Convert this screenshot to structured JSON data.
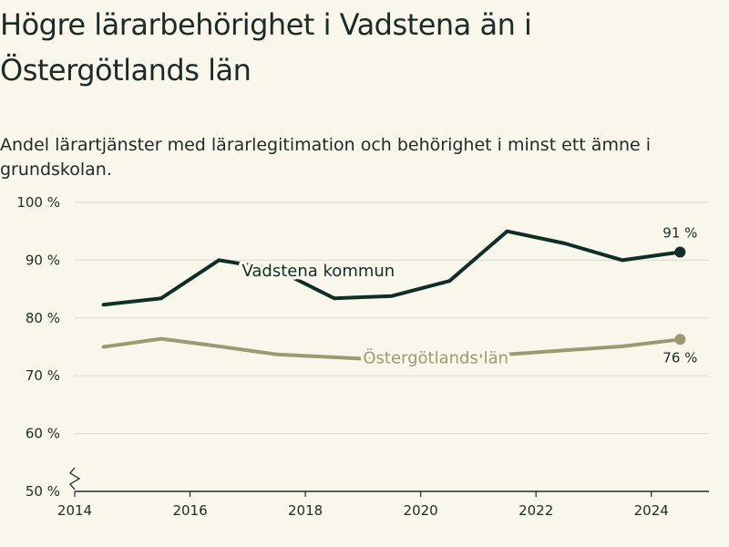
{
  "header": {
    "title": "Högre lärarbehörighet i Vadstena än i Östergötlands län",
    "subtitle": "Andel lärartjänster med lärarlegitimation och behörighet i minst ett ämne i grundskolan."
  },
  "colors": {
    "background": "#f9f6ec",
    "vadstena": "#0f2e26",
    "ostergotland": "#9c9a72",
    "grid": "#dcd9cf",
    "axis": "#1c2b26"
  },
  "chart_data": {
    "type": "line",
    "title": "Högre lärarbehörighet i Vadstena än i Östergötlands län",
    "subtitle": "Andel lärartjänster med lärarlegitimation och behörighet i minst ett ämne i grundskolan.",
    "xlim": [
      2014,
      2025
    ],
    "ylim": [
      50,
      100
    ],
    "x_ticks": [
      2014,
      2016,
      2018,
      2020,
      2022,
      2024
    ],
    "x_tick_labels": [
      "2014",
      "2016",
      "2018",
      "2020",
      "2022",
      "2024"
    ],
    "y_ticks": [
      50,
      60,
      70,
      80,
      90,
      100
    ],
    "y_tick_labels": [
      "50 %",
      "60 %",
      "70 %",
      "80 %",
      "90 %",
      "100 %"
    ],
    "grid": true,
    "axis_break": true,
    "series": [
      {
        "name": "Vadstena kommun",
        "x": [
          2014.5,
          2015.5,
          2016.5,
          2017.5,
          2018.5,
          2019.5,
          2020.5,
          2021.5,
          2022.5,
          2023.5,
          2024.5
        ],
        "values": [
          82.3,
          83.4,
          90.0,
          88.4,
          83.4,
          83.8,
          86.4,
          95.0,
          92.9,
          90.0,
          91.4
        ],
        "end_label": "91 %"
      },
      {
        "name": "Östergötlands län",
        "x": [
          2014.5,
          2015.5,
          2016.5,
          2017.5,
          2018.5,
          2019.5,
          2020.5,
          2021.5,
          2022.5,
          2023.5,
          2024.5
        ],
        "values": [
          75.0,
          76.4,
          75.1,
          73.7,
          73.2,
          72.7,
          73.1,
          73.7,
          74.4,
          75.1,
          76.3
        ],
        "end_label": "76 %"
      }
    ]
  }
}
